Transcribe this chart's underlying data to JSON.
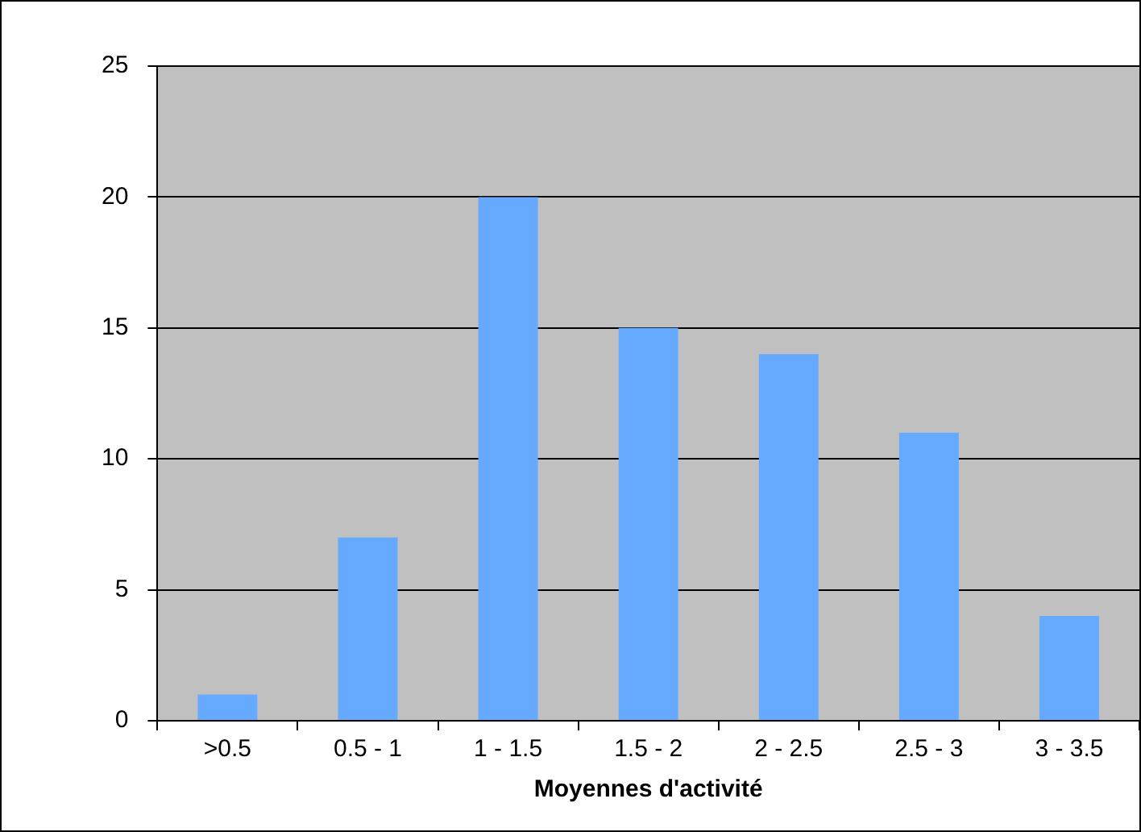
{
  "chart_data": {
    "type": "bar",
    "xlabel": "Moyennes d'activité",
    "categories": [
      ">0.5",
      "0.5 - 1",
      "1 - 1.5",
      "1.5 - 2",
      "2 - 2.5",
      "2.5 - 3",
      "3 - 3.5"
    ],
    "values": [
      1,
      7,
      20,
      15,
      14,
      11,
      4
    ],
    "color": "#66aaff",
    "ylim": [
      0,
      25
    ],
    "yticks": [
      0,
      5,
      10,
      15,
      20,
      25
    ],
    "grid": "y"
  }
}
